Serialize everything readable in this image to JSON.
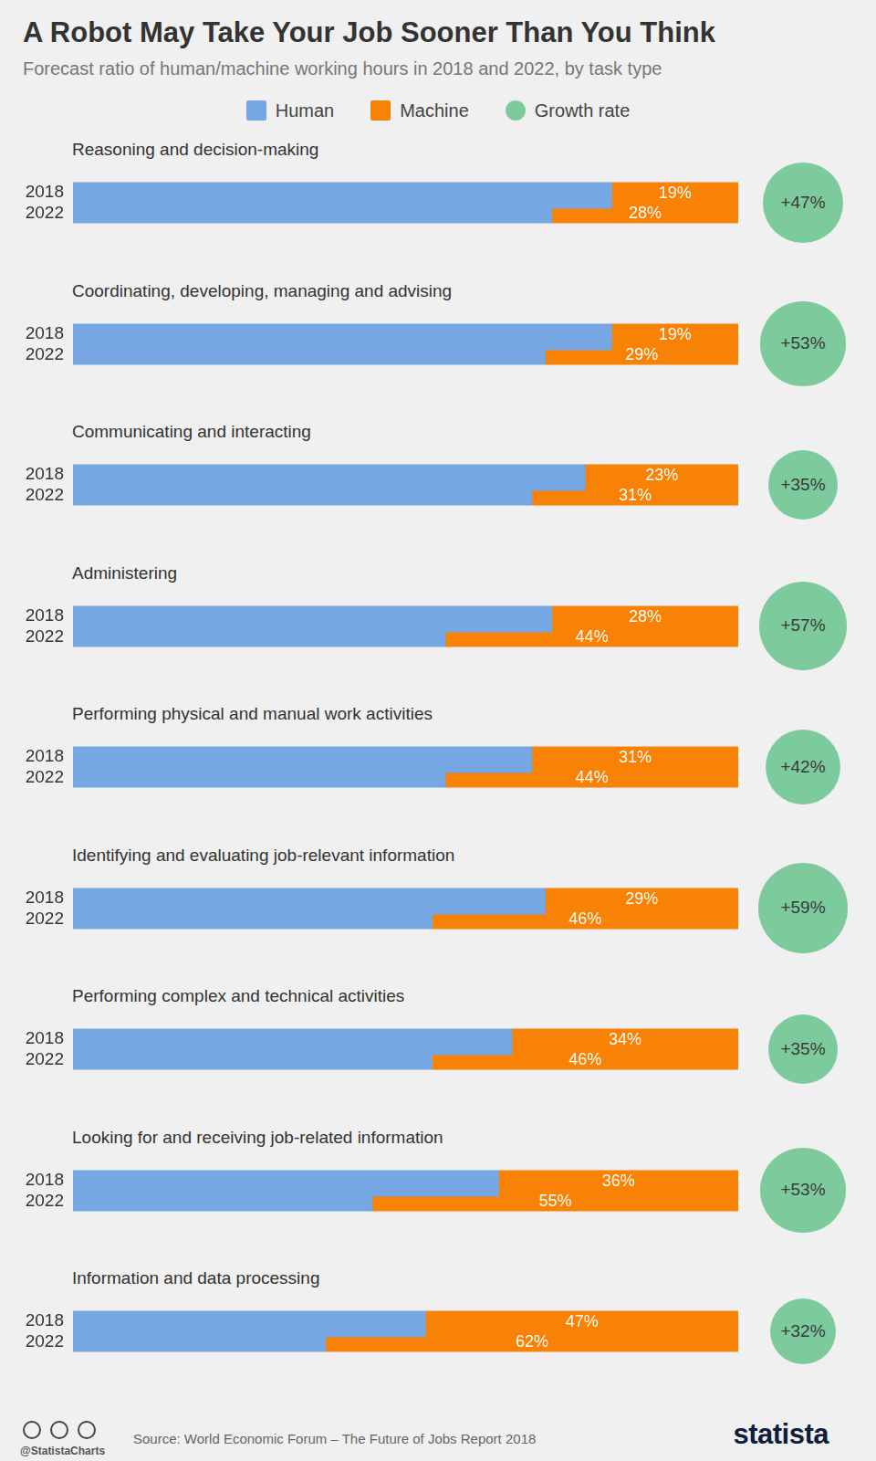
{
  "chart_data": {
    "type": "bar",
    "orientation": "horizontal",
    "stacked": true,
    "grid": false,
    "legend": "top",
    "tick_labels": "y",
    "title": "A Robot May Take Your Job Sooner Than You Think",
    "subtitle": "Forecast ratio of human/machine working hours in 2018 and 2022, by task type",
    "groups": [
      "Reasoning and decision-making",
      "Coordinating, developing, managing and advising",
      "Communicating and interacting",
      "Administering",
      "Performing physical and manual work activities",
      "Identifying and evaluating job-relevant information",
      "Performing complex and technical activities",
      "Looking for and receiving job-related information",
      "Information and data processing"
    ],
    "categories": [
      "2018",
      "2022",
      "2018",
      "2022",
      "2018",
      "2022",
      "2018",
      "2022",
      "2018",
      "2022",
      "2018",
      "2022",
      "2018",
      "2022",
      "2018",
      "2022",
      "2018",
      "2022"
    ],
    "xlim": [
      0,
      100
    ],
    "series": [
      {
        "name": "Human",
        "color": "#77a7e3",
        "values": [
          81,
          72,
          81,
          71,
          77,
          69,
          72,
          56,
          69,
          56,
          71,
          54,
          66,
          54,
          64,
          45,
          53,
          38
        ]
      },
      {
        "name": "Machine",
        "color": "#f78205",
        "data_labels": true,
        "values": [
          19,
          28,
          19,
          29,
          23,
          31,
          28,
          44,
          31,
          44,
          29,
          46,
          34,
          46,
          36,
          55,
          47,
          62
        ],
        "value_labels": [
          "19%",
          "28%",
          "19%",
          "29%",
          "23%",
          "31%",
          "28%",
          "44%",
          "31%",
          "44%",
          "29%",
          "46%",
          "34%",
          "46%",
          "36%",
          "55%",
          "47%",
          "62%"
        ]
      }
    ],
    "growth_rate": {
      "name": "Growth rate",
      "color": "#7dcb9d",
      "values": [
        47,
        53,
        35,
        57,
        42,
        59,
        35,
        53,
        32
      ],
      "value_labels": [
        "+47%",
        "+53%",
        "+35%",
        "+57%",
        "+42%",
        "+59%",
        "+35%",
        "+53%",
        "+32%"
      ]
    },
    "credit": "@StatistaCharts",
    "source": "Source: World Economic Forum – The Future of Jobs Report 2018",
    "brand": "statista"
  }
}
